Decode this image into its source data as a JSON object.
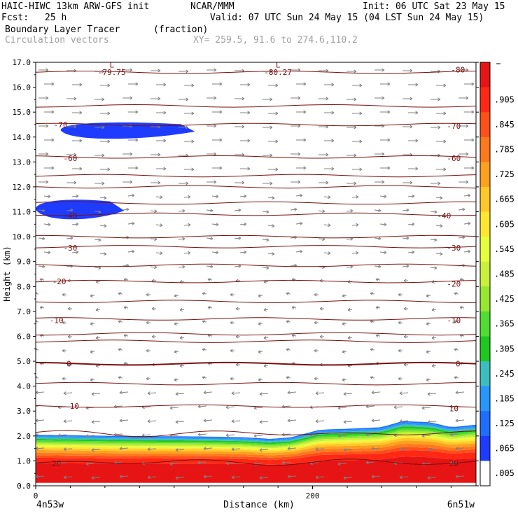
{
  "header": {
    "model": "HAIC-HIWC 13km ARW-GFS init",
    "org": "NCAR/MMM",
    "init": "Init: 06 UTC Sat 23 May 15",
    "fcst_label": "Fcst:",
    "fcst_value": "25 h",
    "valid": "Valid: 07 UTC Sun 24 May 15 (04 LST Sun 24 May 15)",
    "field1": "Boundary Layer Tracer",
    "field1_units": "(fraction)",
    "field2": "Circulation vectors",
    "xy": "XY= 259.5, 91.6 to 274.6,110.2"
  },
  "chart_data": {
    "type": "heatmap",
    "title": "Boundary Layer Tracer",
    "units": "(fraction)",
    "xlabel": "Distance (km)",
    "ylabel": "Height (km)",
    "x_left_label": "4n53w",
    "x_right_label": "6n51w",
    "xlim": [
      0,
      318
    ],
    "ylim": [
      0,
      17
    ],
    "x_ticks": [
      0,
      200
    ],
    "y_ticks": [
      "0.0",
      "1.0",
      "2.0",
      "3.0",
      "4.0",
      "5.0",
      "6.0",
      "7.0",
      "8.0",
      "9.0",
      "10.0",
      "11.0",
      "12.0",
      "13.0",
      "14.0",
      "15.0",
      "16.0",
      "17.0"
    ],
    "colorbar_labels": [
      ".005",
      ".065",
      ".125",
      ".185",
      ".245",
      ".305",
      ".365",
      ".425",
      ".485",
      ".545",
      ".605",
      ".665",
      ".725",
      ".785",
      ".845",
      ".905"
    ],
    "colorbar_colors": [
      "#ffffff",
      "#1e3cff",
      "#1e6eff",
      "#2896ff",
      "#3cbebe",
      "#1ec81e",
      "#50dc32",
      "#96e632",
      "#c8f03c",
      "#e6ff3c",
      "#ffe632",
      "#ffc828",
      "#ffa01e",
      "#ff781e",
      "#ff5019",
      "#ff2814",
      "#e61414"
    ],
    "bl_top_km": [
      [
        0,
        2.05
      ],
      [
        60,
        2.0
      ],
      [
        120,
        1.98
      ],
      [
        150,
        1.95
      ],
      [
        170,
        1.88
      ],
      [
        185,
        1.95
      ],
      [
        205,
        2.25
      ],
      [
        230,
        2.3
      ],
      [
        250,
        2.35
      ],
      [
        265,
        2.6
      ],
      [
        285,
        2.55
      ],
      [
        300,
        2.35
      ],
      [
        318,
        2.45
      ]
    ],
    "upper_patches": [
      {
        "x": [
          18,
          62,
          115
        ],
        "y_top": 14.6,
        "y_bottom": 13.95
      },
      {
        "x": [
          0,
          30,
          64
        ],
        "y_top": 11.5,
        "y_bottom": 10.7
      }
    ],
    "temperature_contours": [
      {
        "value": "-80",
        "height_km": 16.6
      },
      {
        "value": "-70",
        "height_km": 14.5
      },
      {
        "value": "-60",
        "height_km": 13.2
      },
      {
        "value": "-50",
        "height_km": 12.0
      },
      {
        "value": "-40",
        "height_km": 10.9
      },
      {
        "value": "-30",
        "height_km": 9.6
      },
      {
        "value": "-20",
        "height_km": 8.2
      },
      {
        "value": "-10",
        "height_km": 6.7
      },
      {
        "value": "0",
        "height_km": 4.9
      },
      {
        "value": "10",
        "height_km": 3.2
      },
      {
        "value": "20",
        "height_km": 0.95
      }
    ],
    "contour_labels": [
      {
        "text": "-79.75",
        "x": 55,
        "height_km": 16.6
      },
      {
        "text": "-80.27",
        "x": 175,
        "height_km": 16.6
      },
      {
        "text": "-80",
        "x": 305,
        "height_km": 16.7
      },
      {
        "text": "-70",
        "x": 18,
        "height_km": 14.5
      },
      {
        "text": "-70",
        "x": 302,
        "height_km": 14.45
      },
      {
        "text": "-60",
        "x": 25,
        "height_km": 13.15
      },
      {
        "text": "-60",
        "x": 302,
        "height_km": 13.15
      },
      {
        "text": "-40",
        "x": 25,
        "height_km": 10.85
      },
      {
        "text": "-40",
        "x": 295,
        "height_km": 10.85
      },
      {
        "text": "-30",
        "x": 25,
        "height_km": 9.55
      },
      {
        "text": "-30",
        "x": 302,
        "height_km": 9.55
      },
      {
        "text": "-20",
        "x": 17,
        "height_km": 8.2
      },
      {
        "text": "-20",
        "x": 302,
        "height_km": 8.1
      },
      {
        "text": "-10",
        "x": 15,
        "height_km": 6.65
      },
      {
        "text": "-10",
        "x": 302,
        "height_km": 6.65
      },
      {
        "text": "0",
        "x": 24,
        "height_km": 4.9
      },
      {
        "text": "0",
        "x": 305,
        "height_km": 4.9
      },
      {
        "text": "10",
        "x": 28,
        "height_km": 3.2
      },
      {
        "text": "10",
        "x": 302,
        "height_km": 3.1
      },
      {
        "text": "20",
        "x": 15,
        "height_km": 0.9
      },
      {
        "text": "20",
        "x": 302,
        "height_km": 0.9
      }
    ],
    "low_markers": [
      {
        "text": "L",
        "x": 55,
        "height_km": 16.9
      },
      {
        "text": "L",
        "x": 175,
        "height_km": 16.9
      }
    ]
  }
}
